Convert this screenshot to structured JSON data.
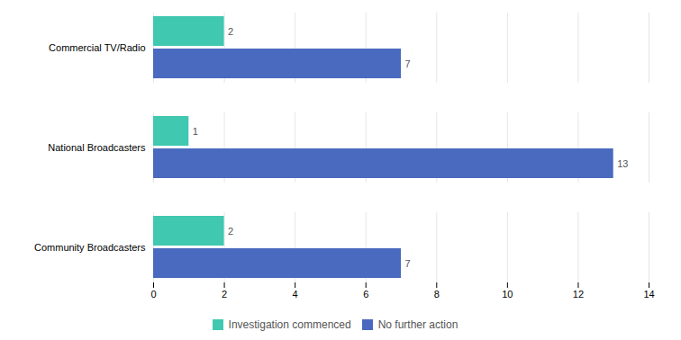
{
  "chart_data": {
    "type": "bar",
    "orientation": "horizontal",
    "categories": [
      "Community Broadcasters",
      "National Broadcasters",
      "Commercial TV/Radio"
    ],
    "series": [
      {
        "name": "Investigation commenced",
        "color": "#40c8b0",
        "values": [
          2,
          1,
          2
        ]
      },
      {
        "name": "No further action",
        "color": "#4a6abf",
        "values": [
          7,
          13,
          7
        ]
      }
    ],
    "xlim": [
      0,
      14
    ],
    "xticks": [
      0,
      2,
      4,
      6,
      8,
      10,
      12,
      14
    ],
    "grid": true,
    "legend": "bottom",
    "data_labels": true
  }
}
